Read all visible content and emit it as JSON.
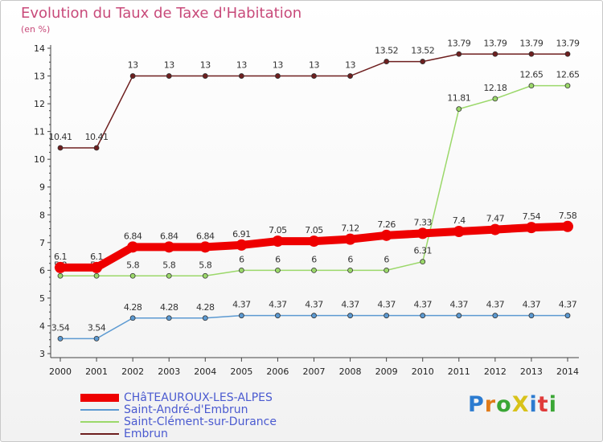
{
  "page": {
    "title": "Evolution du Taux de Taxe d'Habitation",
    "unit_label": "(en %)",
    "logo": {
      "text": "ProXiti",
      "letter_colors": [
        "#2c7bd0",
        "#e07b1a",
        "#3aa635",
        "#d8c21a",
        "#2c7bd0",
        "#e03a3a",
        "#3aa635"
      ]
    }
  },
  "chart_data": {
    "type": "line",
    "x": [
      2000,
      2001,
      2002,
      2003,
      2004,
      2005,
      2006,
      2007,
      2008,
      2009,
      2010,
      2011,
      2012,
      2013,
      2014
    ],
    "ylim": [
      3,
      14
    ],
    "yticks": [
      3,
      4,
      5,
      6,
      7,
      8,
      9,
      10,
      11,
      12,
      13,
      14
    ],
    "grid": false,
    "legend_position": "bottom-left",
    "series": [
      {
        "name": "Embrun",
        "color": "#6e1f1f",
        "values": [
          10.41,
          10.41,
          13,
          13,
          13,
          13,
          13,
          13,
          13,
          13.52,
          13.52,
          13.79,
          13.79,
          13.79,
          13.79
        ],
        "labels": [
          "10.41",
          "10.41",
          "13",
          "13",
          "13",
          "13",
          "13",
          "13",
          "13",
          "13.52",
          "13.52",
          "13.79",
          "13.79",
          "13.79",
          "13.79"
        ]
      },
      {
        "name": "Saint-Clément-sur-Durance",
        "color": "#9bd86a",
        "values": [
          5.8,
          5.8,
          5.8,
          5.8,
          5.8,
          6,
          6,
          6,
          6,
          6,
          6.31,
          11.81,
          12.18,
          12.65,
          12.65
        ],
        "labels": [
          "5.8",
          "5.8",
          "5.8",
          "5.8",
          "5.8",
          "6",
          "6",
          "6",
          "6",
          "6",
          "6.31",
          "11.81",
          "12.18",
          "12.65",
          "12.65"
        ]
      },
      {
        "name": "Saint-André-d'Embrun",
        "color": "#5c9ad2",
        "values": [
          3.54,
          3.54,
          4.28,
          4.28,
          4.28,
          4.37,
          4.37,
          4.37,
          4.37,
          4.37,
          4.37,
          4.37,
          4.37,
          4.37,
          4.37
        ],
        "labels": [
          "3.54",
          "3.54",
          "4.28",
          "4.28",
          "4.28",
          "4.37",
          "4.37",
          "4.37",
          "4.37",
          "4.37",
          "4.37",
          "4.37",
          "4.37",
          "4.37",
          "4.37"
        ]
      },
      {
        "name": "CHâTEAUROUX-LES-ALPES",
        "color": "#ee0000",
        "highlight": true,
        "values": [
          6.1,
          6.1,
          6.84,
          6.84,
          6.84,
          6.91,
          7.05,
          7.05,
          7.12,
          7.26,
          7.33,
          7.4,
          7.47,
          7.54,
          7.58
        ],
        "labels": [
          "6.1",
          "6.1",
          "6.84",
          "6.84",
          "6.84",
          "6.91",
          "7.05",
          "7.05",
          "7.12",
          "7.26",
          "7.33",
          "7.4",
          "7.47",
          "7.54",
          "7.58"
        ]
      }
    ],
    "legend_order": [
      "CHâTEAUROUX-LES-ALPES",
      "Saint-André-d'Embrun",
      "Saint-Clément-sur-Durance",
      "Embrun"
    ]
  }
}
